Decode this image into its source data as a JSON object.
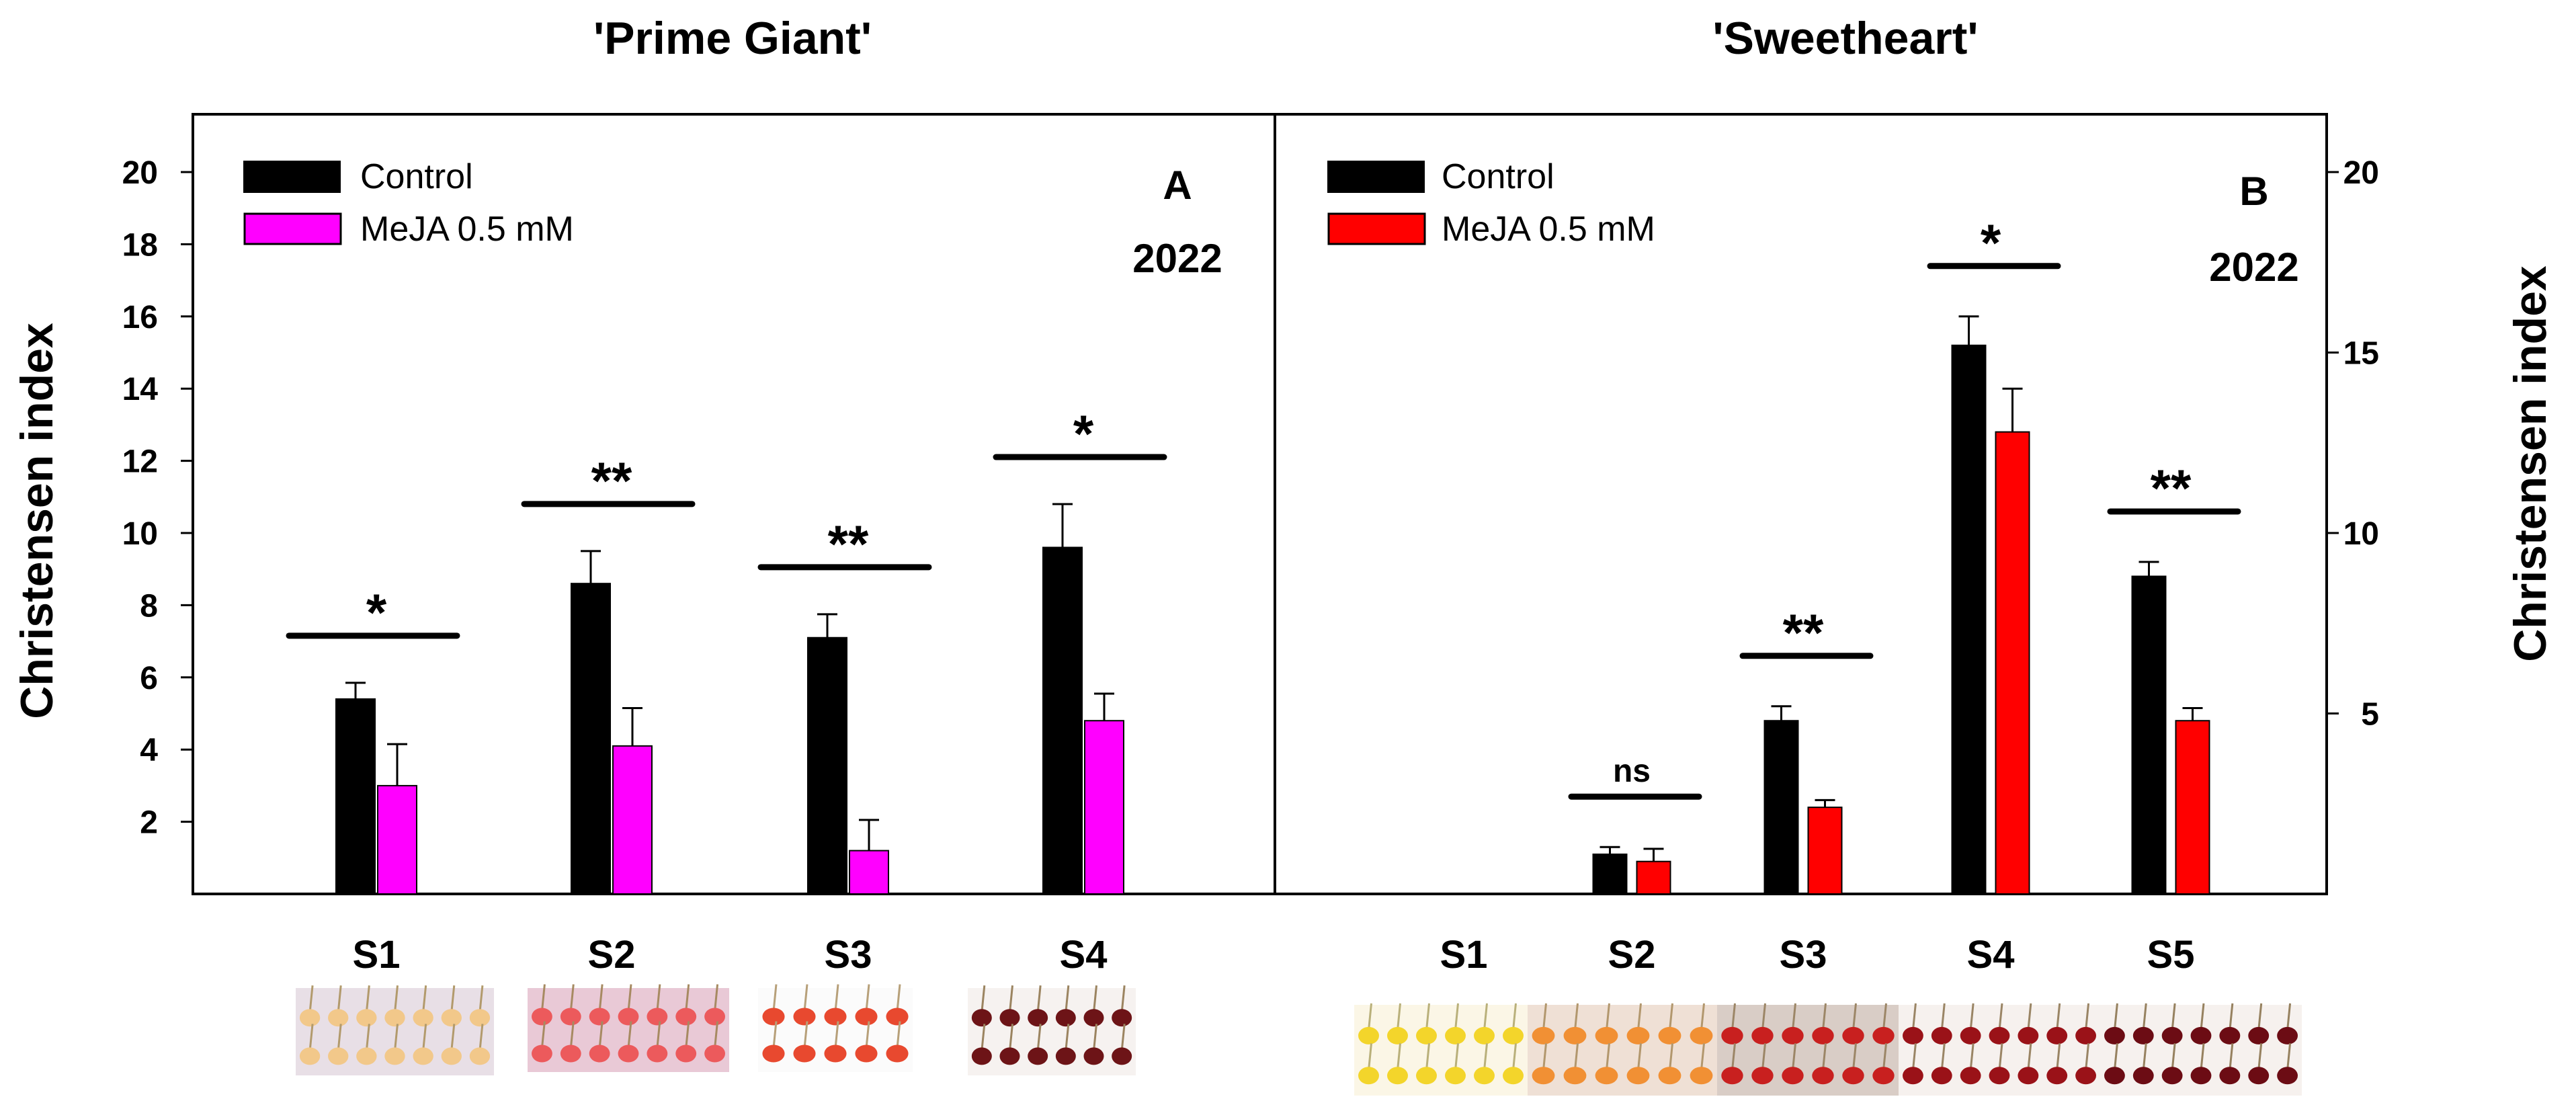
{
  "chart_data": [
    {
      "type": "bar",
      "title": "'Prime Giant'",
      "panel_label": "A",
      "year_label": "2022",
      "ylabel": "Christensen index",
      "ylim": [
        0,
        21.5
      ],
      "yticks": [
        "2",
        "4",
        "6",
        "8",
        "10",
        "12",
        "14",
        "16",
        "18",
        "20"
      ],
      "categories": [
        "S1",
        "S2",
        "S3",
        "S4"
      ],
      "series": [
        {
          "name": "Control",
          "color": "#000000",
          "values": [
            5.4,
            8.6,
            7.1,
            9.6
          ],
          "errors": [
            0.45,
            0.9,
            0.65,
            1.2
          ]
        },
        {
          "name": "MeJA 0.5 mM",
          "color": "#ff00ff",
          "values": [
            3.0,
            4.1,
            1.2,
            4.8
          ],
          "errors": [
            1.15,
            1.05,
            0.85,
            0.75
          ]
        }
      ],
      "significance": [
        "*",
        "**",
        "**",
        "*"
      ],
      "legend_position": "top-left"
    },
    {
      "type": "bar",
      "title": "'Sweetheart'",
      "panel_label": "B",
      "year_label": "2022",
      "ylabel": "Christensen index",
      "ylim": [
        0,
        21.5
      ],
      "yticks": [
        "5",
        "10",
        "15",
        "20"
      ],
      "categories": [
        "S1",
        "S2",
        "S3",
        "S4",
        "S5"
      ],
      "series": [
        {
          "name": "Control",
          "color": "#000000",
          "values": [
            0,
            1.1,
            4.8,
            15.2,
            8.8
          ],
          "errors": [
            0,
            0.2,
            0.4,
            0.8,
            0.4
          ]
        },
        {
          "name": "MeJA 0.5 mM",
          "color": "#ff0000",
          "values": [
            0,
            0.9,
            2.4,
            12.8,
            4.8
          ],
          "errors": [
            0,
            0.35,
            0.2,
            1.2,
            0.35
          ]
        }
      ],
      "significance": [
        "",
        "ns",
        "**",
        "*",
        "**"
      ],
      "legend_position": "top-left"
    }
  ],
  "photos": {
    "prime_giant": [
      {
        "stage": "S1",
        "bg": "#e8dfe6",
        "fruit": "#f2c88a",
        "stem": "#b29a6c"
      },
      {
        "stage": "S2",
        "bg": "#e9c9d6",
        "fruit": "#ec5a5c",
        "stem": "#a78a62"
      },
      {
        "stage": "S3",
        "bg": "#fbfbfb",
        "fruit": "#e8492f",
        "stem": "#b7a079"
      },
      {
        "stage": "S4",
        "bg": "#f6f2f0",
        "fruit": "#6d1417",
        "stem": "#9b8460"
      }
    ],
    "sweetheart": [
      {
        "stage": "S1",
        "bg": "#fbf6e6",
        "fruit": "#f3d52b",
        "stem": "#b9b07a"
      },
      {
        "stage": "S2",
        "bg": "#efe0d5",
        "fruit": "#f19034",
        "stem": "#b2976d"
      },
      {
        "stage": "S3",
        "bg": "#d9cdc6",
        "fruit": "#c8201f",
        "stem": "#9c8667"
      },
      {
        "stage": "S4",
        "bg": "#f6f1ee",
        "fruit": "#9a1218",
        "stem": "#9a8565"
      },
      {
        "stage": "S5",
        "bg": "#f6f1ee",
        "fruit": "#6c0c14",
        "stem": "#96815f"
      }
    ]
  }
}
